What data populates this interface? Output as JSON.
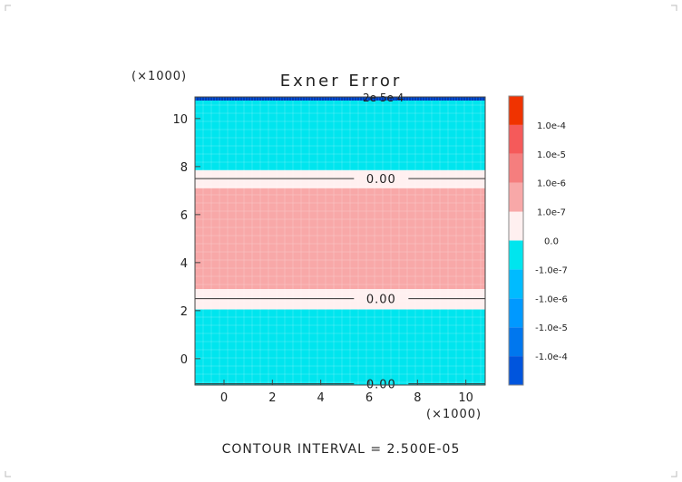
{
  "chart_data": {
    "type": "heatmap",
    "title": "Exner Error",
    "footer": "CONTOUR INTERVAL = 2.500E-05",
    "x_multiplier_label": "(×1000)",
    "y_multiplier_label": "(×1000)",
    "xlim": [
      -1.2,
      10.8
    ],
    "ylim": [
      -1.1,
      10.9
    ],
    "x_ticks": [
      0,
      2,
      4,
      6,
      8,
      10
    ],
    "y_ticks": [
      0,
      2,
      4,
      6,
      8,
      10
    ],
    "colorbar": {
      "colors": [
        "#0055dd",
        "#0077ee",
        "#0099ff",
        "#00bbff",
        "#00e5ee",
        "#fff0f0",
        "#f8a8a8",
        "#f57e7e",
        "#f55a5a",
        "#f03300"
      ],
      "labels": [
        "-1.0e-4",
        "-1.0e-5",
        "-1.0e-6",
        "-1.0e-7",
        "0.0",
        "1.0e-7",
        "1.0e-6",
        "1.0e-5",
        "1.0e-4"
      ]
    },
    "bands": [
      {
        "y0": -1.1,
        "y1": 2.05,
        "color": "#00e5ee"
      },
      {
        "y0": 2.05,
        "y1": 2.9,
        "color": "#fff0f0"
      },
      {
        "y0": 2.9,
        "y1": 7.1,
        "color": "#f8a8a8"
      },
      {
        "y0": 7.1,
        "y1": 7.85,
        "color": "#fff0f0"
      },
      {
        "y0": 7.85,
        "y1": 10.75,
        "color": "#00e5ee"
      },
      {
        "y0": 10.75,
        "y1": 10.9,
        "color": "#0055dd"
      }
    ],
    "contours": [
      {
        "y": 2.5,
        "label": "0.00"
      },
      {
        "y": 7.5,
        "label": "0.00"
      },
      {
        "y": -1.05,
        "label": "0.00"
      }
    ],
    "top_labels": "2e 5e 4"
  }
}
